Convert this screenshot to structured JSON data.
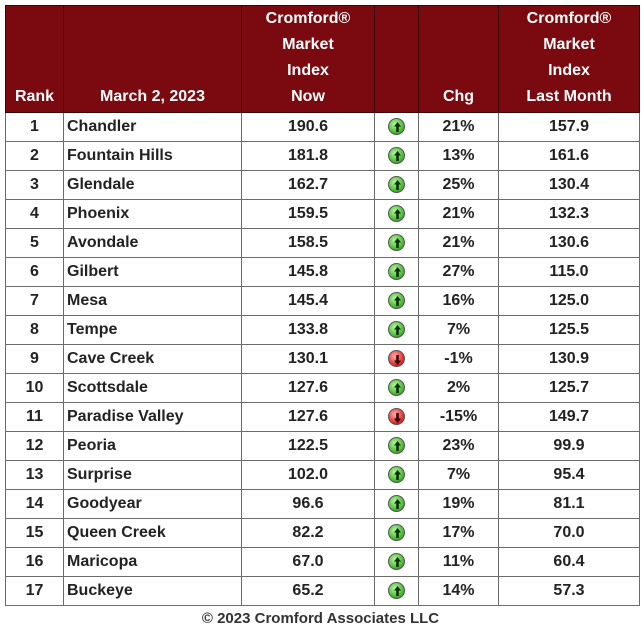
{
  "headers": {
    "rank": "Rank",
    "date": "March 2, 2023",
    "now": [
      "Cromford®",
      "Market",
      "Index",
      "Now"
    ],
    "chg": "Chg",
    "last": [
      "Cromford®",
      "Market",
      "Index",
      "Last Month"
    ]
  },
  "rows": [
    {
      "rank": "1",
      "city": "Chandler",
      "now": "190.6",
      "dir": "up",
      "chg": "21%",
      "last": "157.9"
    },
    {
      "rank": "2",
      "city": "Fountain Hills",
      "now": "181.8",
      "dir": "up",
      "chg": "13%",
      "last": "161.6"
    },
    {
      "rank": "3",
      "city": "Glendale",
      "now": "162.7",
      "dir": "up",
      "chg": "25%",
      "last": "130.4"
    },
    {
      "rank": "4",
      "city": "Phoenix",
      "now": "159.5",
      "dir": "up",
      "chg": "21%",
      "last": "132.3"
    },
    {
      "rank": "5",
      "city": "Avondale",
      "now": "158.5",
      "dir": "up",
      "chg": "21%",
      "last": "130.6"
    },
    {
      "rank": "6",
      "city": "Gilbert",
      "now": "145.8",
      "dir": "up",
      "chg": "27%",
      "last": "115.0"
    },
    {
      "rank": "7",
      "city": "Mesa",
      "now": "145.4",
      "dir": "up",
      "chg": "16%",
      "last": "125.0"
    },
    {
      "rank": "8",
      "city": "Tempe",
      "now": "133.8",
      "dir": "up",
      "chg": "7%",
      "last": "125.5"
    },
    {
      "rank": "9",
      "city": "Cave Creek",
      "now": "130.1",
      "dir": "down",
      "chg": "-1%",
      "last": "130.9"
    },
    {
      "rank": "10",
      "city": "Scottsdale",
      "now": "127.6",
      "dir": "up",
      "chg": "2%",
      "last": "125.7"
    },
    {
      "rank": "11",
      "city": "Paradise Valley",
      "now": "127.6",
      "dir": "down",
      "chg": "-15%",
      "last": "149.7"
    },
    {
      "rank": "12",
      "city": "Peoria",
      "now": "122.5",
      "dir": "up",
      "chg": "23%",
      "last": "99.9"
    },
    {
      "rank": "13",
      "city": "Surprise",
      "now": "102.0",
      "dir": "up",
      "chg": "7%",
      "last": "95.4"
    },
    {
      "rank": "14",
      "city": "Goodyear",
      "now": "96.6",
      "dir": "up",
      "chg": "19%",
      "last": "81.1"
    },
    {
      "rank": "15",
      "city": "Queen Creek",
      "now": "82.2",
      "dir": "up",
      "chg": "17%",
      "last": "70.0"
    },
    {
      "rank": "16",
      "city": "Maricopa",
      "now": "67.0",
      "dir": "up",
      "chg": "11%",
      "last": "60.4"
    },
    {
      "rank": "17",
      "city": "Buckeye",
      "now": "65.2",
      "dir": "up",
      "chg": "14%",
      "last": "57.3"
    }
  ],
  "footer": "© 2023 Cromford Associates LLC",
  "colors": {
    "header_bg": "#7a0a0f",
    "up": "#39b521",
    "down": "#e02020"
  },
  "icons": {
    "up": "green-up-arrow-icon",
    "down": "red-down-arrow-icon"
  }
}
